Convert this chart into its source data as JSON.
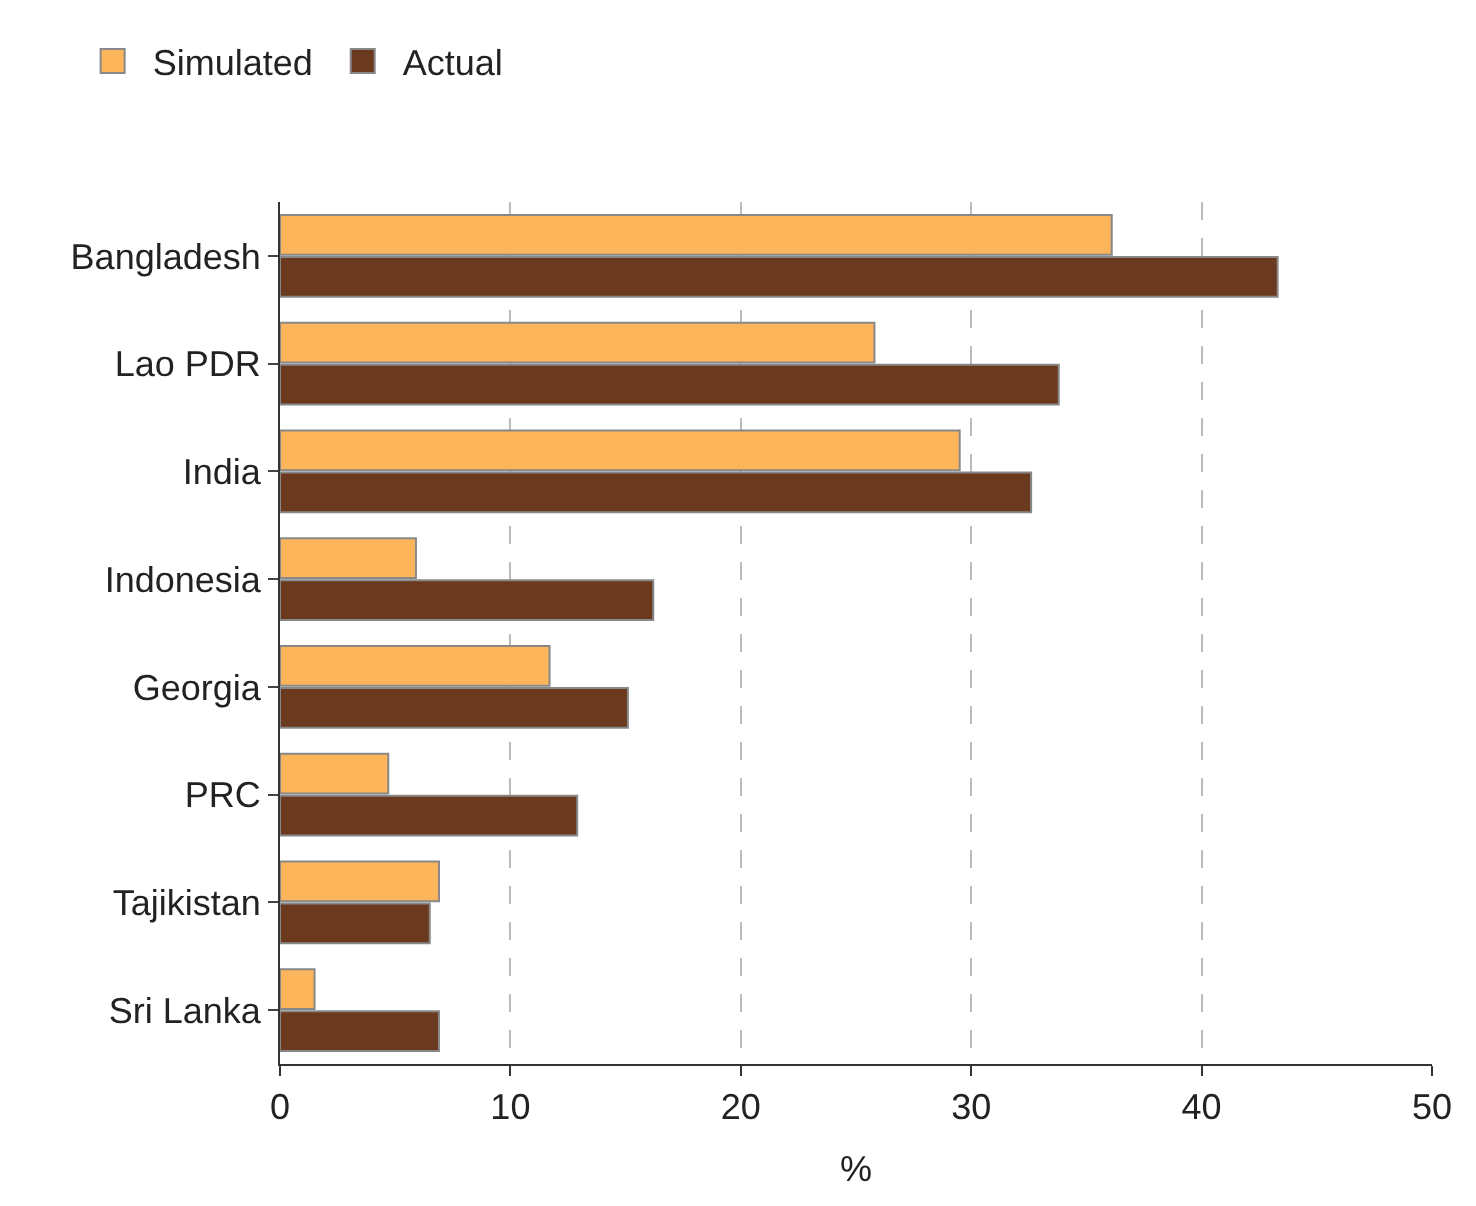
{
  "chart_data": {
    "type": "bar",
    "orientation": "horizontal",
    "xlabel": "%",
    "categories": [
      "Bangladesh",
      "Lao PDR",
      "India",
      "Indonesia",
      "Georgia",
      "PRC",
      "Tajikistan",
      "Sri Lanka"
    ],
    "series": [
      {
        "name": "Simulated",
        "color": "#fdb55c",
        "values": [
          36.1,
          25.8,
          29.5,
          5.9,
          11.7,
          4.7,
          6.9,
          1.5
        ]
      },
      {
        "name": "Actual",
        "color": "#6b3a1e",
        "values": [
          43.3,
          33.8,
          32.6,
          16.2,
          15.1,
          12.9,
          6.5,
          6.9
        ]
      }
    ],
    "xlim": [
      0,
      50
    ],
    "xticks": [
      0,
      10,
      20,
      30,
      40,
      50
    ],
    "grid": "x",
    "legend": "top left"
  }
}
